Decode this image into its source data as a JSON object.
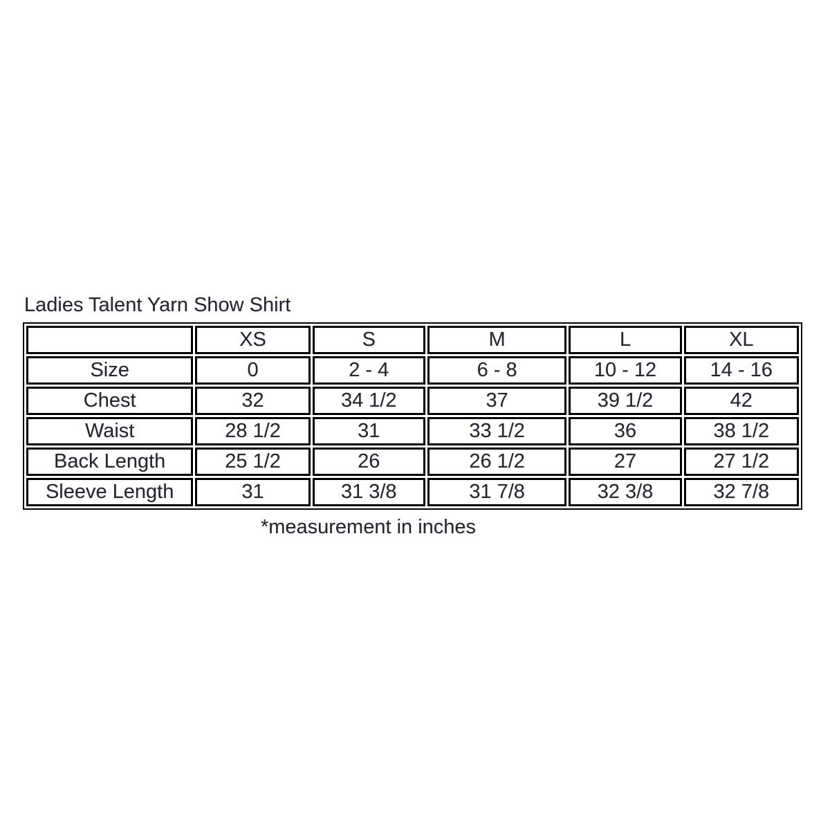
{
  "title": "Ladies Talent Yarn Show Shirt",
  "footnote": "*measurement in inches",
  "colors": {
    "text": "#25262e",
    "border": "#000000",
    "background": "#ffffff"
  },
  "chart_data": {
    "type": "table",
    "title": "Ladies Talent Yarn Show Shirt",
    "unit_note": "*measurement in inches",
    "columns": [
      "",
      "XS",
      "S",
      "M",
      "L",
      "XL"
    ],
    "rows": [
      {
        "label": "Size",
        "values": [
          "0",
          "2 - 4",
          "6 - 8",
          "10 - 12",
          "14 - 16"
        ]
      },
      {
        "label": "Chest",
        "values": [
          "32",
          "34 1/2",
          "37",
          "39 1/2",
          "42"
        ]
      },
      {
        "label": "Waist",
        "values": [
          "28 1/2",
          "31",
          "33 1/2",
          "36",
          "38 1/2"
        ]
      },
      {
        "label": "Back Length",
        "values": [
          "25 1/2",
          "26",
          "26 1/2",
          "27",
          "27 1/2"
        ]
      },
      {
        "label": "Sleeve Length",
        "values": [
          "31",
          "31 3/8",
          "31 7/8",
          "32 3/8",
          "32 7/8"
        ]
      }
    ]
  }
}
